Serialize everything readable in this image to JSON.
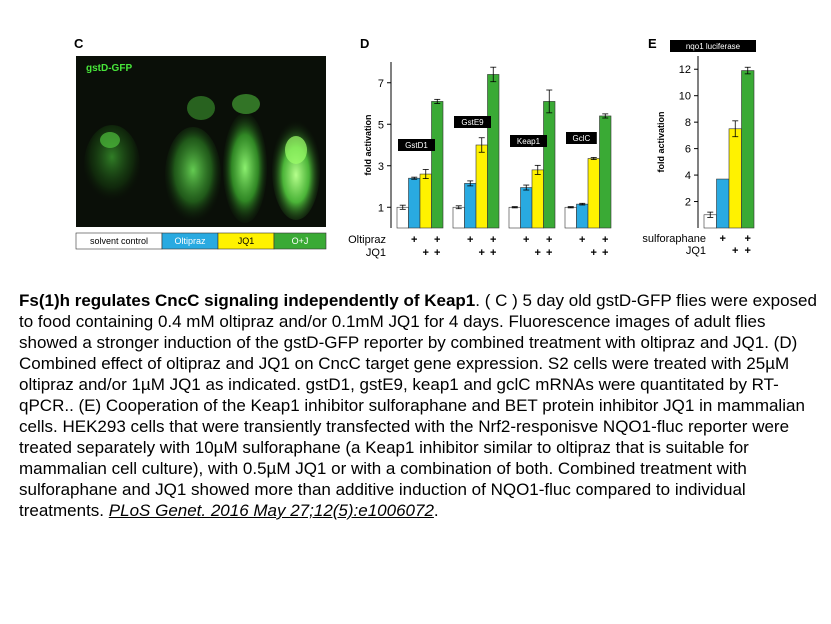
{
  "panel_c": {
    "letter": "C",
    "image_label": "gstD-GFP",
    "legend": [
      {
        "label": "solvent control",
        "color": "#ffffff",
        "text_color": "#000000"
      },
      {
        "label": "Oltipraz",
        "color": "#29aae1",
        "text_color": "#ffffff"
      },
      {
        "label": "JQ1",
        "color": "#fff200",
        "text_color": "#000000"
      },
      {
        "label": "O+J",
        "color": "#3aaa35",
        "text_color": "#ffffff"
      }
    ]
  },
  "panel_d": {
    "letter": "D",
    "row_labels": [
      "Oltipraz",
      "JQ1"
    ]
  },
  "panel_e": {
    "letter": "E",
    "row_labels": [
      "sulforaphane",
      "JQ1"
    ]
  },
  "chart_data": [
    {
      "type": "bar",
      "panel": "D",
      "ylabel": "fold activation",
      "ylim": [
        0,
        8
      ],
      "yticks": [
        "1",
        "3",
        "5",
        "7"
      ],
      "groups": [
        "GstD1",
        "GstE9",
        "Keap1",
        "GclC"
      ],
      "series": [
        {
          "name": "solvent control",
          "color": "#ffffff",
          "values": [
            1.0,
            1.0,
            1.0,
            1.0
          ],
          "errors": [
            0.1,
            0.07,
            0.03,
            0.03
          ]
        },
        {
          "name": "Oltipraz",
          "color": "#29aae1",
          "values": [
            2.4,
            2.15,
            1.95,
            1.15
          ],
          "errors": [
            0.05,
            0.12,
            0.12,
            0.04
          ]
        },
        {
          "name": "JQ1",
          "color": "#fff200",
          "values": [
            2.6,
            4.0,
            2.8,
            3.35
          ],
          "errors": [
            0.22,
            0.35,
            0.22,
            0.05
          ]
        },
        {
          "name": "O+J",
          "color": "#3aaa35",
          "values": [
            6.1,
            7.4,
            6.1,
            5.4
          ],
          "errors": [
            0.1,
            0.35,
            0.55,
            0.1
          ]
        }
      ],
      "treatment_rows": {
        "Oltipraz": [
          "",
          "+",
          "",
          "+"
        ],
        "JQ1": [
          "",
          "",
          "+",
          "+"
        ]
      }
    },
    {
      "type": "bar",
      "panel": "E",
      "title": "nqo1 luciferase",
      "ylabel": "fold activation",
      "ylim": [
        0,
        13
      ],
      "yticks": [
        "2",
        "4",
        "6",
        "8",
        "10",
        "12"
      ],
      "categories": [
        "control",
        "sulforaphane",
        "JQ1",
        "sulforaphane + JQ1"
      ],
      "values": [
        1.0,
        3.7,
        7.5,
        11.9
      ],
      "errors": [
        0.2,
        0.0,
        0.6,
        0.25
      ],
      "colors": [
        "#ffffff",
        "#29aae1",
        "#fff200",
        "#3aaa35"
      ],
      "treatment_rows": {
        "sulforaphane": [
          "",
          "+",
          "",
          "+"
        ],
        "JQ1": [
          "",
          "",
          "+",
          "+"
        ]
      }
    }
  ],
  "caption": {
    "title": "Fs(1)h regulates CncC signaling independently of Keap1",
    "body": ". ( C ) 5 day old gstD-GFP flies were exposed to food containing 0.4 mM oltipraz and/or 0.1mM JQ1 for 4 days. Fluorescence images of adult flies showed a stronger induction of the gstD-GFP reporter by combined treatment with oltipraz and JQ1. (D) Combined effect of oltipraz and JQ1 on CncC target gene expression. S2 cells were treated with 25µM oltipraz and/or 1µM JQ1 as indicated. gstD1, gstE9, keap1 and gclC mRNAs were quantitated by RT-qPCR.. (E) Cooperation of the Keap1 inhibitor sulforaphane and BET protein inhibitor JQ1 in mammalian cells. HEK293 cells that were transiently transfected with the Nrf2-responisve NQO1-fluc reporter were treated separately with 10µM sulforaphane (a Keap1 inhibitor similar to oltipraz that is suitable for mammalian cell culture), with 0.5µM JQ1 or with a combination of both. Combined treatment with sulforaphane and JQ1 showed more than additive induction of NQO1-fluc compared to individual treatments.",
    "citation": "PLoS Genet. 2016 May 27;12(5):e1006072",
    "end": "."
  }
}
